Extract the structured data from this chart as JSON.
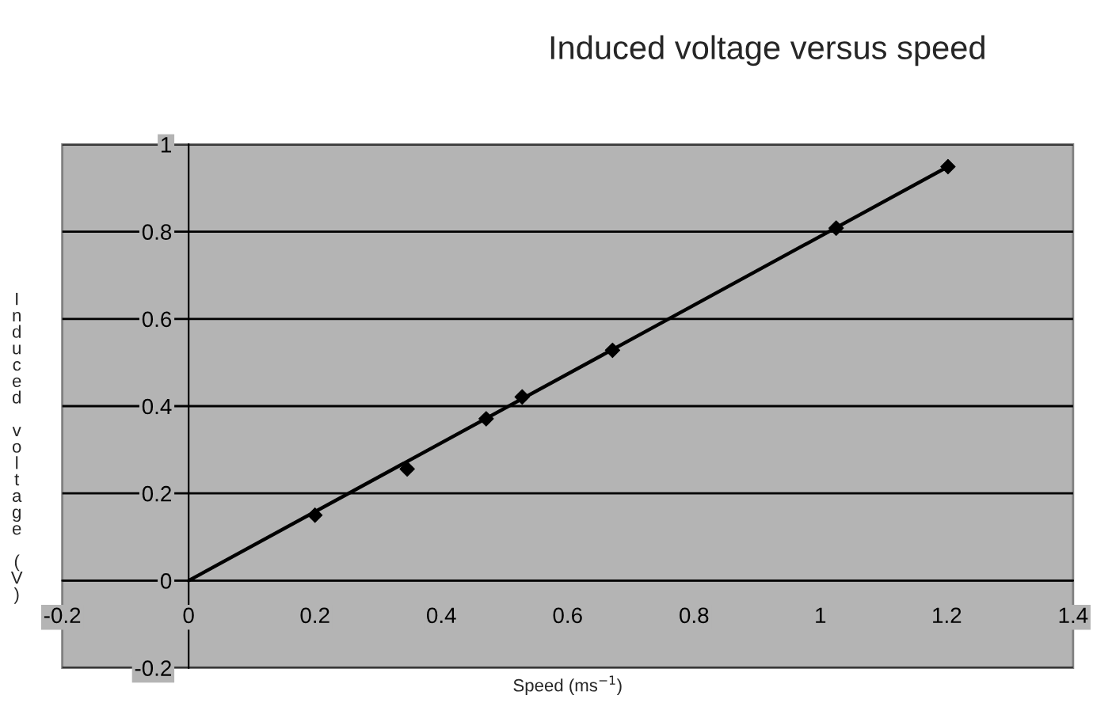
{
  "chart_data": {
    "type": "scatter",
    "title": "Induced voltage versus speed",
    "xlabel": "Speed (ms$^{−1}$)",
    "ylabel": "Induced voltage (V)",
    "series": [
      {
        "color": "#000000",
        "x": [
          0.2,
          0.346,
          0.471,
          0.528,
          0.671,
          1.025,
          1.202
        ],
        "values": [
          0.15,
          0.256,
          0.371,
          0.421,
          0.528,
          0.808,
          0.949
        ],
        "marker": "diamond"
      },
      {
        "type": "line",
        "color": "#000000",
        "x": [
          0,
          1.202
        ],
        "values": [
          0,
          0.949
        ],
        "marker": "none",
        "line_style": "solid"
      }
    ],
    "xlim": [
      -0.2,
      1.4
    ],
    "ylim": [
      -0.2,
      1
    ],
    "xticks": [
      -0.2,
      0,
      0.2,
      0.4,
      0.6,
      0.8,
      1,
      1.2,
      1.4
    ],
    "yticks": [
      -0.2,
      0,
      0.2,
      0.4,
      0.6,
      0.8,
      1
    ],
    "grid": "y",
    "legend": false
  }
}
